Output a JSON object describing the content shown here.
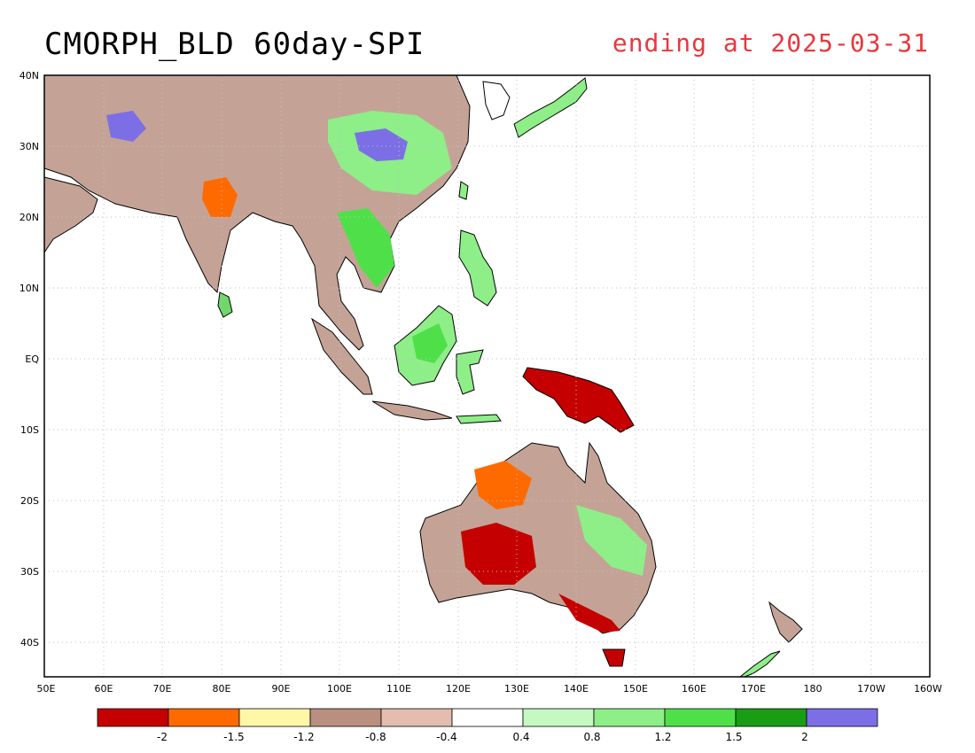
{
  "title": "CMORPH_BLD 60day-SPI",
  "subtitle": "ending at 2025-03-31",
  "subtitle_color": "#e8383d",
  "map": {
    "lon_labels": [
      "50E",
      "60E",
      "70E",
      "80E",
      "90E",
      "100E",
      "110E",
      "120E",
      "130E",
      "140E",
      "150E",
      "160E",
      "170E",
      "180",
      "170W",
      "160W"
    ],
    "lat_labels": [
      "40N",
      "30N",
      "20N",
      "10N",
      "EQ",
      "10S",
      "20S",
      "30S",
      "40S"
    ]
  },
  "legend": {
    "colors": [
      "#c40000",
      "#ff6a00",
      "#fff7a8",
      "#b98f80",
      "#e2bdb0",
      "#ffffff",
      "#c6f9c2",
      "#8eee88",
      "#4fe049",
      "#1a9c15",
      "#7c6fe6"
    ],
    "labels": [
      "-2",
      "-1.5",
      "-1.2",
      "-0.8",
      "-0.4",
      "0.4",
      "0.8",
      "1.2",
      "1.5",
      "2"
    ]
  }
}
